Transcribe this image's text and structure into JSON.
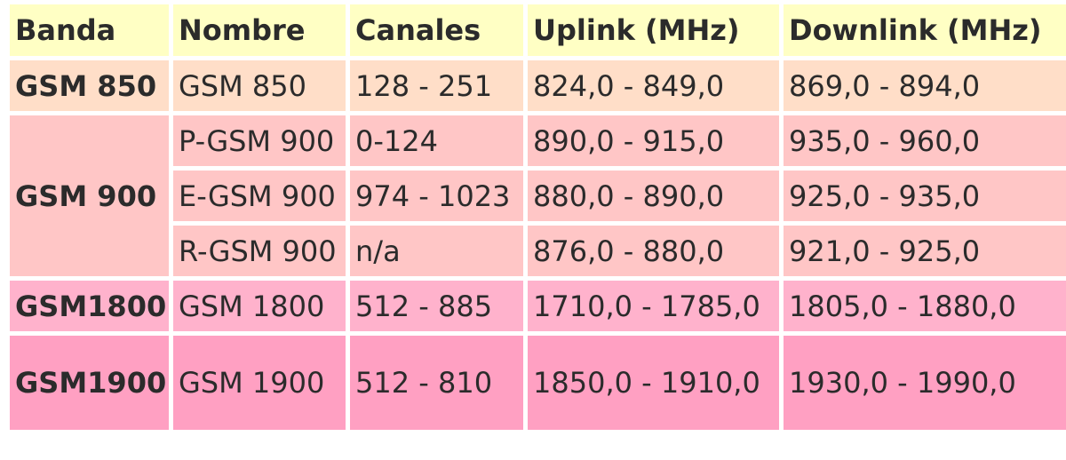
{
  "headers": [
    "Banda",
    "Nombre",
    "Canales",
    "Uplink (MHz)",
    "Downlink (MHz)"
  ],
  "rows": [
    {
      "band": "GSM 850",
      "name": "GSM 850",
      "channels": "128 - 251",
      "uplink": "824,0 - 849,0",
      "downlink": "869,0 - 894,0"
    },
    {
      "band": "GSM 900",
      "name": "P-GSM 900",
      "channels": "0-124",
      "uplink": "890,0 - 915,0",
      "downlink": "935,0 - 960,0"
    },
    {
      "name": "E-GSM 900",
      "channels": "974 - 1023",
      "uplink": "880,0 - 890,0",
      "downlink": "925,0 - 935,0"
    },
    {
      "name": "R-GSM 900",
      "channels": "n/a",
      "uplink": "876,0 - 880,0",
      "downlink": "921,0 - 925,0"
    },
    {
      "band": "GSM1800",
      "name": "GSM 1800",
      "channels": "512 - 885",
      "uplink": "1710,0 - 1785,0",
      "downlink": "1805,0 - 1880,0"
    },
    {
      "band": "GSM1900",
      "name": "GSM 1900",
      "channels": "512 - 810",
      "uplink": "1850,0 - 1910,0",
      "downlink": "1930,0 - 1990,0"
    }
  ]
}
